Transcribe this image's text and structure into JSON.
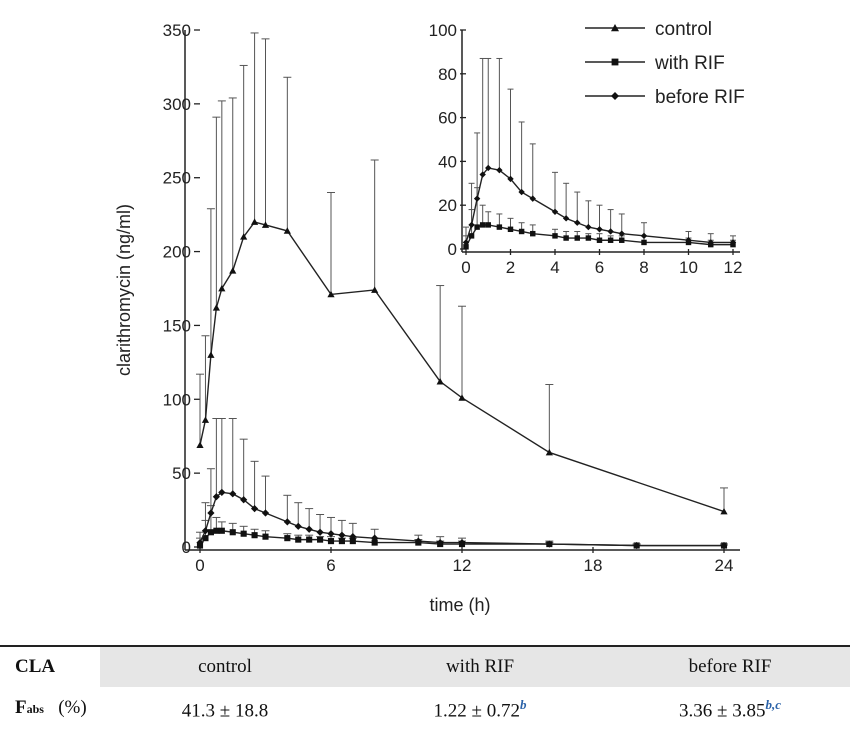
{
  "chart_data": [
    {
      "type": "line",
      "title": "",
      "xlabel": "time (h)",
      "ylabel": "clarithromycin (ng/ml)",
      "xlim": [
        0,
        24
      ],
      "ylim": [
        0,
        350
      ],
      "x_ticks": [
        0,
        6,
        12,
        18,
        24
      ],
      "y_ticks": [
        0,
        50,
        100,
        150,
        200,
        250,
        300,
        350
      ],
      "legend_position": "top-right",
      "series": [
        {
          "name": "control",
          "marker": "triangle",
          "x": [
            0,
            0.25,
            0.5,
            0.75,
            1,
            1.5,
            2,
            2.5,
            3,
            4,
            6,
            8,
            11,
            12,
            16,
            24
          ],
          "values": [
            69,
            86,
            130,
            162,
            175,
            187,
            210,
            220,
            218,
            214,
            171,
            174,
            112,
            101,
            64,
            24
          ],
          "error_upper": [
            117,
            143,
            229,
            291,
            302,
            304,
            326,
            348,
            344,
            318,
            240,
            262,
            177,
            163,
            110,
            40
          ]
        },
        {
          "name": "with RIF",
          "marker": "square",
          "x": [
            0,
            0.25,
            0.5,
            0.75,
            1,
            1.5,
            2,
            2.5,
            3,
            4,
            4.5,
            5,
            5.5,
            6,
            6.5,
            7,
            8,
            10,
            11,
            12,
            16,
            20,
            24
          ],
          "values": [
            1,
            6,
            10,
            11,
            11,
            10,
            9,
            8,
            7,
            6,
            5,
            5,
            5,
            4,
            4,
            4,
            3,
            3,
            2,
            2,
            2,
            1,
            1
          ],
          "error_upper": [
            6,
            18,
            28,
            20,
            17,
            16,
            14,
            12,
            11,
            9,
            8,
            8,
            7,
            7,
            6,
            6,
            6,
            5,
            4,
            4,
            3,
            2,
            2
          ]
        },
        {
          "name": "before RIF",
          "marker": "diamond",
          "x": [
            0,
            0.25,
            0.5,
            0.75,
            1,
            1.5,
            2,
            2.5,
            3,
            4,
            4.5,
            5,
            5.5,
            6,
            6.5,
            7,
            8,
            10,
            11,
            12,
            16,
            20,
            24
          ],
          "values": [
            3,
            11,
            23,
            34,
            37,
            36,
            32,
            26,
            23,
            17,
            14,
            12,
            10,
            9,
            8,
            7,
            6,
            4,
            3,
            3,
            2,
            1,
            1
          ],
          "error_upper": [
            10,
            30,
            53,
            87,
            87,
            87,
            73,
            58,
            48,
            35,
            30,
            26,
            22,
            20,
            18,
            16,
            12,
            8,
            7,
            6,
            4,
            2,
            2
          ]
        }
      ]
    },
    {
      "type": "line",
      "title": "",
      "xlabel": "",
      "ylabel": "",
      "xlim": [
        0,
        12
      ],
      "ylim": [
        0,
        100
      ],
      "x_ticks": [
        0,
        2,
        4,
        6,
        8,
        10,
        12
      ],
      "y_ticks": [
        0,
        20,
        40,
        60,
        80,
        100
      ],
      "series": [
        {
          "name": "with RIF",
          "marker": "square",
          "x": [
            0,
            0.25,
            0.5,
            0.75,
            1,
            1.5,
            2,
            2.5,
            3,
            4,
            4.5,
            5,
            5.5,
            6,
            6.5,
            7,
            8,
            10,
            11,
            12
          ],
          "values": [
            1,
            6,
            10,
            11,
            11,
            10,
            9,
            8,
            7,
            6,
            5,
            5,
            5,
            4,
            4,
            4,
            3,
            3,
            2,
            2
          ],
          "error_upper": [
            6,
            18,
            28,
            20,
            17,
            16,
            14,
            12,
            11,
            9,
            8,
            8,
            7,
            7,
            6,
            6,
            6,
            5,
            4,
            4
          ]
        },
        {
          "name": "before RIF",
          "marker": "diamond",
          "x": [
            0,
            0.25,
            0.5,
            0.75,
            1,
            1.5,
            2,
            2.5,
            3,
            4,
            4.5,
            5,
            5.5,
            6,
            6.5,
            7,
            8,
            10,
            11,
            12
          ],
          "values": [
            3,
            11,
            23,
            34,
            37,
            36,
            32,
            26,
            23,
            17,
            14,
            12,
            10,
            9,
            8,
            7,
            6,
            4,
            3,
            3
          ],
          "error_upper": [
            10,
            30,
            53,
            87,
            87,
            87,
            73,
            58,
            48,
            35,
            30,
            26,
            22,
            20,
            18,
            16,
            12,
            8,
            7,
            6
          ]
        }
      ]
    }
  ],
  "table": {
    "row_label": "CLA",
    "headers": [
      "control",
      "with RIF",
      "before RIF"
    ],
    "param_main": "F",
    "param_sub": "abs",
    "param_unit": "(%)",
    "values": [
      {
        "value": "41.3 ± 18.8",
        "sup": ""
      },
      {
        "value": "1.22 ± 0.72",
        "sup": "b"
      },
      {
        "value": "3.36 ± 3.85",
        "sup": "b,c"
      }
    ]
  }
}
